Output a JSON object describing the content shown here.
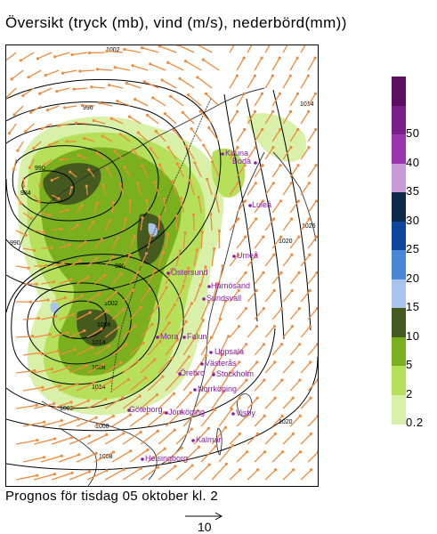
{
  "title": "Översikt (tryck (mb), vind (m/s), nederbörd(mm))",
  "footer": "Prognos för tisdag 05 oktober kl. 2",
  "wind_scale": {
    "label": "10"
  },
  "colors": {
    "wind_arrow": "#f08a3c",
    "city": "#8a1aa8",
    "isobar": "#000000",
    "coast": "#333333"
  },
  "legend": {
    "bands": [
      {
        "label": "",
        "color": "#5c0f5e"
      },
      {
        "label": "50",
        "color": "#7a1e8c"
      },
      {
        "label": "40",
        "color": "#9a35b0"
      },
      {
        "label": "35",
        "color": "#c99ad8"
      },
      {
        "label": "30",
        "color": "#0e2a4a"
      },
      {
        "label": "25",
        "color": "#0e45a0"
      },
      {
        "label": "20",
        "color": "#4a86d8"
      },
      {
        "label": "15",
        "color": "#a8c4ec"
      },
      {
        "label": "10",
        "color": "#445a1e"
      },
      {
        "label": "5",
        "color": "#7ab01e"
      },
      {
        "label": "2",
        "color": "#b6e05a"
      },
      {
        "label": "0.2",
        "color": "#d8f0a8"
      }
    ]
  },
  "isobar_labels": [
    "1002",
    "996",
    "990",
    "984",
    "990",
    "996",
    "1002",
    "1008",
    "1014",
    "1008",
    "1014",
    "1002",
    "1008",
    "1008",
    "1020",
    "1026",
    "1020",
    "1014"
  ],
  "cities": [
    {
      "name": "Kiruna"
    },
    {
      "name": "Boda"
    },
    {
      "name": "Luleå"
    },
    {
      "name": "Umeå"
    },
    {
      "name": "Östersund"
    },
    {
      "name": "Härnösand"
    },
    {
      "name": "Sundsvall"
    },
    {
      "name": "Mora"
    },
    {
      "name": "Falun"
    },
    {
      "name": "Uppsala"
    },
    {
      "name": "Västerås"
    },
    {
      "name": "Örebro"
    },
    {
      "name": "Stockholm"
    },
    {
      "name": "Norrköping"
    },
    {
      "name": "Göteborg"
    },
    {
      "name": "Jönköping"
    },
    {
      "name": "Visby"
    },
    {
      "name": "Kalmar"
    },
    {
      "name": "Helsingborg"
    }
  ]
}
